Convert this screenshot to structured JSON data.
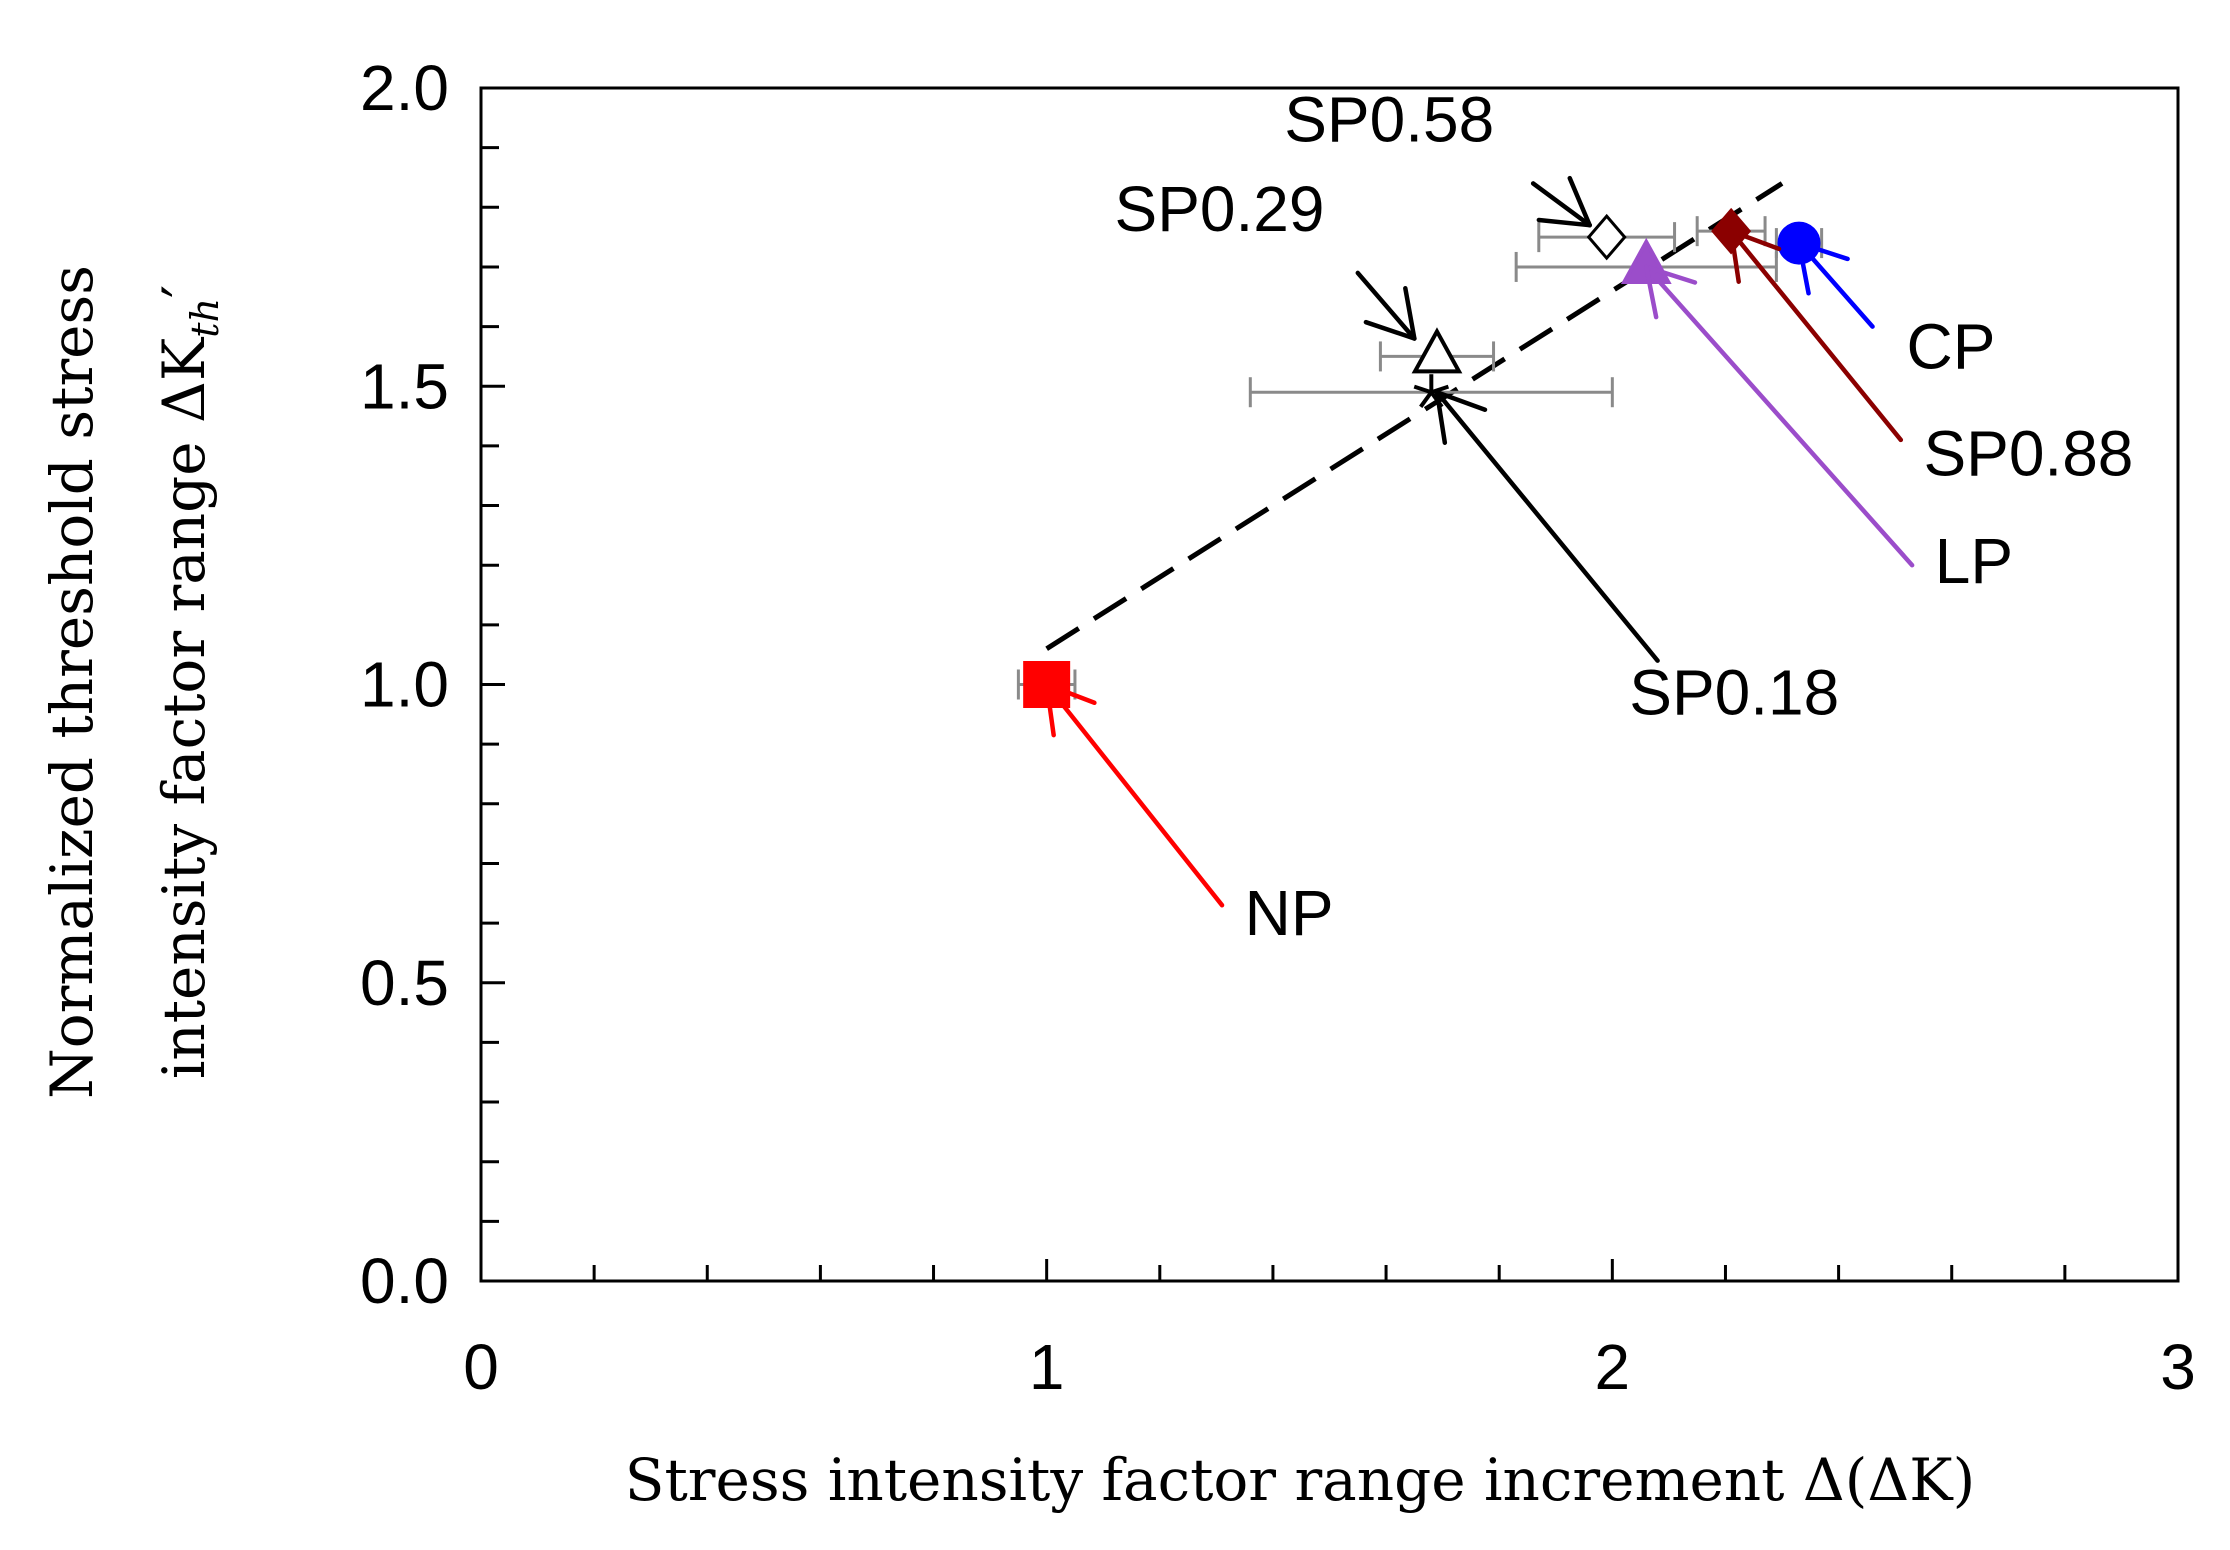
{
  "chart_data": {
    "type": "scatter",
    "title": "",
    "xlabel": "Stress intensity factor range increment Δ(ΔK)",
    "ylabel_line1": "Normalized threshold stress",
    "ylabel_line2": "intensity factor range ΔK",
    "ylabel_sub": "th",
    "ylabel_prime": "′",
    "xlim": [
      0,
      3
    ],
    "ylim": [
      0,
      2.0
    ],
    "x_ticks": [
      "0",
      "1",
      "2",
      "3"
    ],
    "y_ticks": [
      "0.0",
      "0.5",
      "1.0",
      "1.5",
      "2.0"
    ],
    "x_tick_values": [
      0,
      1,
      2,
      3
    ],
    "y_tick_values": [
      0,
      0.5,
      1.0,
      1.5,
      2.0
    ],
    "x_minor_step": 0.2,
    "y_minor_step": 0.1,
    "trend_line": {
      "style": "dashed",
      "color": "#000000",
      "points": [
        [
          1.0,
          1.06
        ],
        [
          1.7,
          1.48
        ],
        [
          2.3,
          1.84
        ]
      ]
    },
    "series": [
      {
        "name": "NP",
        "x": 1.0,
        "y": 1.0,
        "xerr": 0.05,
        "marker": "square",
        "filled": true,
        "color": "#ff0000"
      },
      {
        "name": "SP0.18",
        "x": 1.68,
        "y": 1.49,
        "xerr": 0.32,
        "marker": "asterisk",
        "filled": true,
        "color": "#000000"
      },
      {
        "name": "SP0.29",
        "x": 1.69,
        "y": 1.55,
        "xerr": 0.1,
        "marker": "triangle",
        "filled": false,
        "color": "#000000"
      },
      {
        "name": "SP0.58",
        "x": 1.99,
        "y": 1.75,
        "xerr": 0.12,
        "marker": "diamond",
        "filled": false,
        "color": "#000000"
      },
      {
        "name": "LP",
        "x": 2.06,
        "y": 1.7,
        "xerr": 0.23,
        "marker": "triangle",
        "filled": true,
        "color": "#9b4dca"
      },
      {
        "name": "SP0.88",
        "x": 2.21,
        "y": 1.76,
        "xerr": 0.06,
        "marker": "diamond",
        "filled": true,
        "color": "#8b0000"
      },
      {
        "name": "CP",
        "x": 2.33,
        "y": 1.74,
        "xerr": 0.04,
        "marker": "circle",
        "filled": true,
        "color": "#0000ff"
      }
    ],
    "callouts": [
      {
        "label": "NP",
        "color": "#ff0000",
        "text_x": 1.35,
        "text_y": 0.58,
        "tail_x": 1.31,
        "tail_y": 0.63,
        "head_x": 1.0,
        "head_y": 1.0
      },
      {
        "label": "SP0.18",
        "color": "#000000",
        "text_x": 2.03,
        "text_y": 0.95,
        "tail_x": 2.08,
        "tail_y": 1.04,
        "head_x": 1.69,
        "head_y": 1.49
      },
      {
        "label": "SP0.29",
        "color": "#000000",
        "text_x": 1.12,
        "text_y": 1.76,
        "tail_x": 1.55,
        "tail_y": 1.69,
        "head_x": 1.65,
        "head_y": 1.58
      },
      {
        "label": "SP0.58",
        "color": "#000000",
        "text_x": 1.42,
        "text_y": 1.91,
        "tail_x": 1.86,
        "tail_y": 1.84,
        "head_x": 1.96,
        "head_y": 1.77
      },
      {
        "label": "LP",
        "color": "#9b4dca",
        "text_x": 2.57,
        "text_y": 1.17,
        "tail_x": 2.53,
        "tail_y": 1.2,
        "head_x": 2.06,
        "head_y": 1.7
      },
      {
        "label": "SP0.88",
        "color": "#8b0000",
        "text_x": 2.55,
        "text_y": 1.35,
        "tail_x": 2.51,
        "tail_y": 1.41,
        "head_x": 2.21,
        "head_y": 1.76
      },
      {
        "label": "CP",
        "color": "#0000ff",
        "text_x": 2.52,
        "text_y": 1.53,
        "tail_x": 2.46,
        "tail_y": 1.6,
        "head_x": 2.33,
        "head_y": 1.74
      }
    ]
  }
}
